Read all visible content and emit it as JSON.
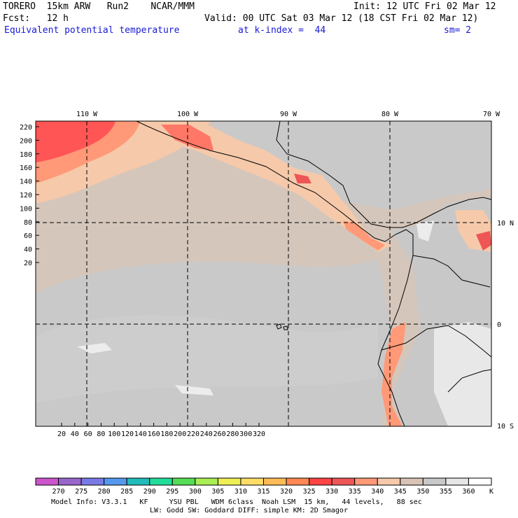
{
  "header": {
    "model": "TORERO  15km ARW   Run2    NCAR/MMM",
    "init": "Init: 12 UTC Fri 02 Mar 12",
    "fcst": "Fcst:   12 h",
    "valid": "Valid: 00 UTC Sat 03 Mar 12 (18 CST Fri 02 Mar 12)",
    "field": "Equivalent potential temperature",
    "level": "at k-index =  44",
    "smooth": "sm= 2"
  },
  "map": {
    "lon_labels": [
      "110 W",
      "100 W",
      "90 W",
      "80 W",
      "70 W"
    ],
    "lat_labels": [
      "10 N",
      "0",
      "10 S"
    ],
    "y_ticks": [
      "220",
      "200",
      "180",
      "160",
      "140",
      "120",
      "100",
      "80",
      "60",
      "40",
      "20"
    ],
    "x_ticks": [
      "20",
      "40",
      "60",
      "80",
      "100",
      "120",
      "140",
      "160",
      "180",
      "200",
      "220",
      "240",
      "260",
      "280",
      "300",
      "320"
    ]
  },
  "colorbar": {
    "labels": [
      "270",
      "275",
      "280",
      "285",
      "290",
      "295",
      "300",
      "305",
      "310",
      "315",
      "320",
      "325",
      "330",
      "335",
      "340",
      "345",
      "350",
      "355",
      "360"
    ],
    "unit": "K",
    "colors": [
      "#cc55cc",
      "#9966cc",
      "#7a7ae6",
      "#5599ee",
      "#22bbbb",
      "#22dd99",
      "#55dd55",
      "#aaee55",
      "#eeee55",
      "#ffdd66",
      "#ffbb55",
      "#ff8855",
      "#ff4444",
      "#ee5555",
      "#ff9977",
      "#f5c9aa",
      "#d9c3b6",
      "#c8c8c8",
      "#e6e6e6",
      "#ffffff"
    ]
  },
  "footer": {
    "line1": "Model Info: V3.3.1   KF     YSU PBL   WDM 6class  Noah LSM  15 km,   44 levels,   88 sec",
    "line2": "LW: Godd SW: Goddard DIFF: simple KM: 2D Smagor"
  }
}
